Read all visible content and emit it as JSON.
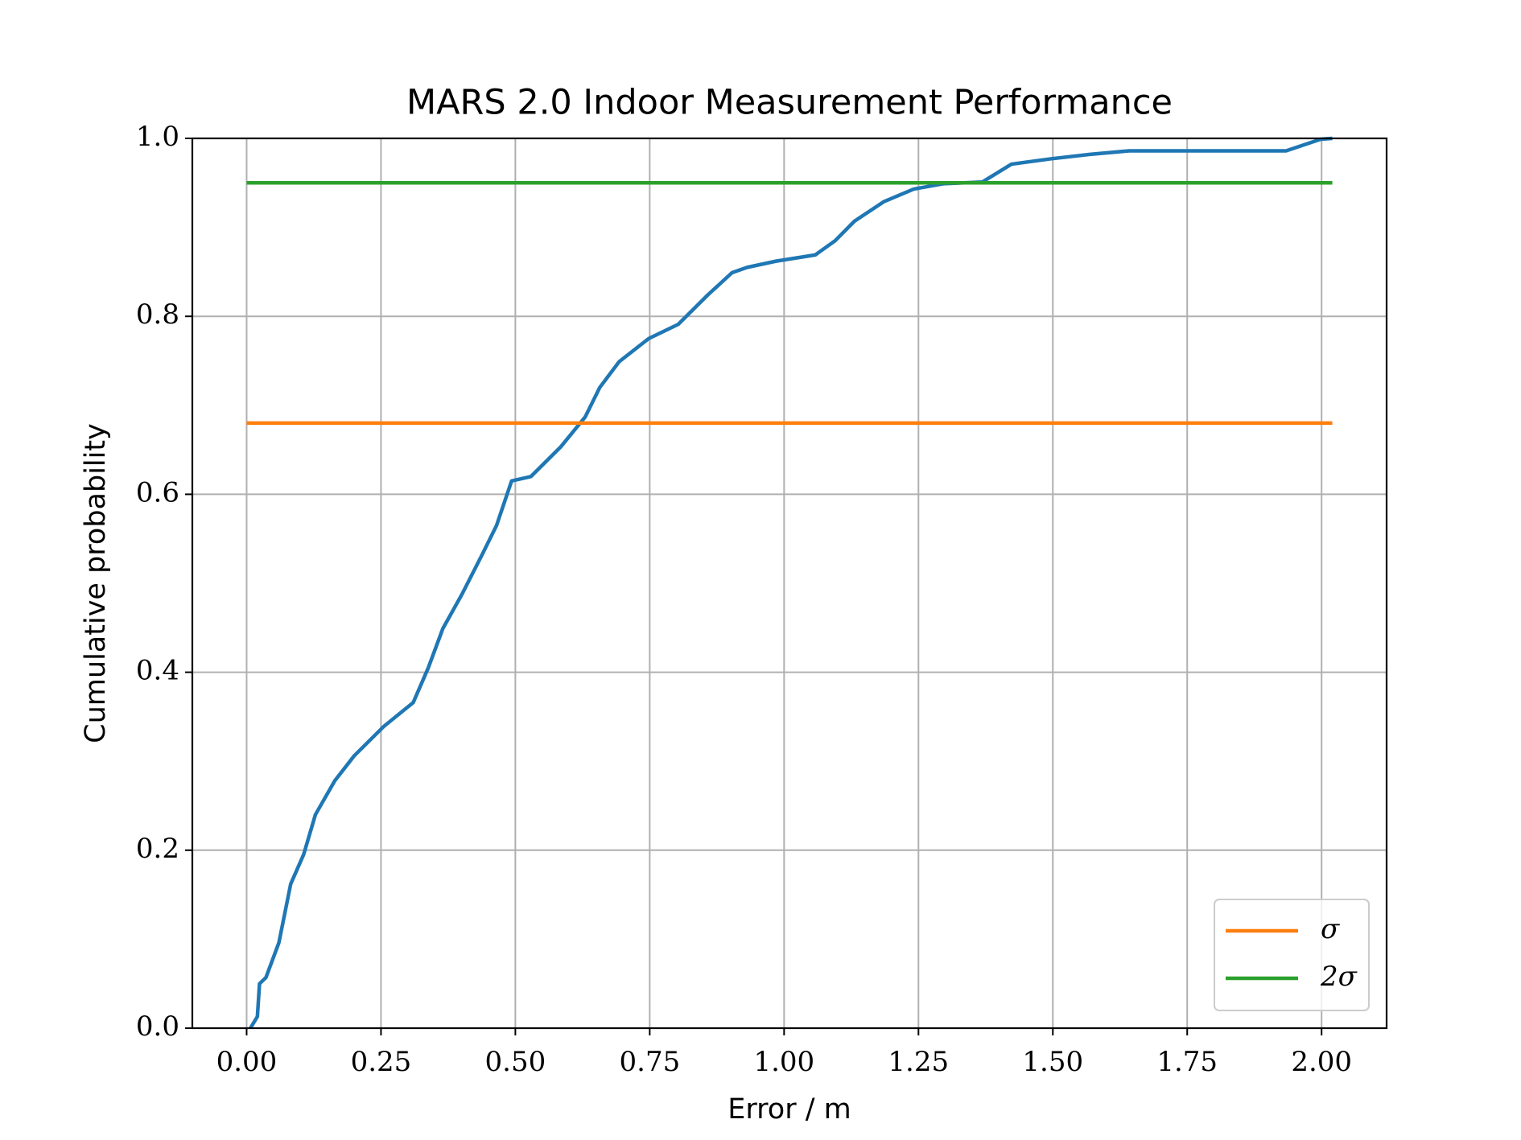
{
  "chart_data": {
    "type": "line",
    "title": "MARS 2.0 Indoor Measurement Performance",
    "x_label": "Error / m",
    "y_label": "Cumulative probability",
    "series": [
      {
        "color": "#1f77b4",
        "x": [
          0.007,
          0.02,
          0.024,
          0.036,
          0.06,
          0.082,
          0.106,
          0.128,
          0.164,
          0.2,
          0.255,
          0.31,
          0.338,
          0.365,
          0.401,
          0.438,
          0.465,
          0.493,
          0.529,
          0.584,
          0.63,
          0.657,
          0.693,
          0.748,
          0.803,
          0.858,
          0.903,
          0.931,
          0.985,
          1.058,
          1.095,
          1.131,
          1.186,
          1.241,
          1.296,
          1.369,
          1.423,
          1.496,
          1.569,
          1.642,
          1.934,
          1.998,
          2.02
        ],
        "values": [
          0.0,
          0.013,
          0.05,
          0.057,
          0.096,
          0.162,
          0.195,
          0.24,
          0.278,
          0.306,
          0.339,
          0.366,
          0.405,
          0.449,
          0.488,
          0.532,
          0.565,
          0.615,
          0.62,
          0.653,
          0.687,
          0.72,
          0.749,
          0.775,
          0.791,
          0.824,
          0.849,
          0.855,
          0.862,
          0.869,
          0.885,
          0.907,
          0.929,
          0.943,
          0.949,
          0.951,
          0.971,
          0.977,
          0.982,
          0.986,
          0.986,
          0.999,
          1.0
        ]
      },
      {
        "name": "σ",
        "color": "#ff7f0e",
        "x": [
          0.0,
          2.02
        ],
        "values": [
          0.68,
          0.68
        ]
      },
      {
        "name": "2σ",
        "color": "#2ca02c",
        "x": [
          0.0,
          2.02
        ],
        "values": [
          0.95,
          0.95
        ]
      }
    ],
    "xlim": [
      -0.101,
      2.121
    ],
    "ylim": [
      0.0,
      1.0
    ],
    "xticks": [
      {
        "value": 0,
        "label": "0.00"
      },
      {
        "value": 0.25,
        "label": "0.25"
      },
      {
        "value": 0.5,
        "label": "0.50"
      },
      {
        "value": 0.75,
        "label": "0.75"
      },
      {
        "value": 1,
        "label": "1.00"
      },
      {
        "value": 1.25,
        "label": "1.25"
      },
      {
        "value": 1.5,
        "label": "1.50"
      },
      {
        "value": 1.75,
        "label": "1.75"
      },
      {
        "value": 2,
        "label": "2.00"
      }
    ],
    "yticks": [
      {
        "value": 0,
        "label": "0.0"
      },
      {
        "value": 0.2,
        "label": "0.2"
      },
      {
        "value": 0.4,
        "label": "0.4"
      },
      {
        "value": 0.6,
        "label": "0.6"
      },
      {
        "value": 0.8,
        "label": "0.8"
      },
      {
        "value": 1,
        "label": "1.0"
      }
    ],
    "grid": true,
    "legend": "lower right"
  }
}
